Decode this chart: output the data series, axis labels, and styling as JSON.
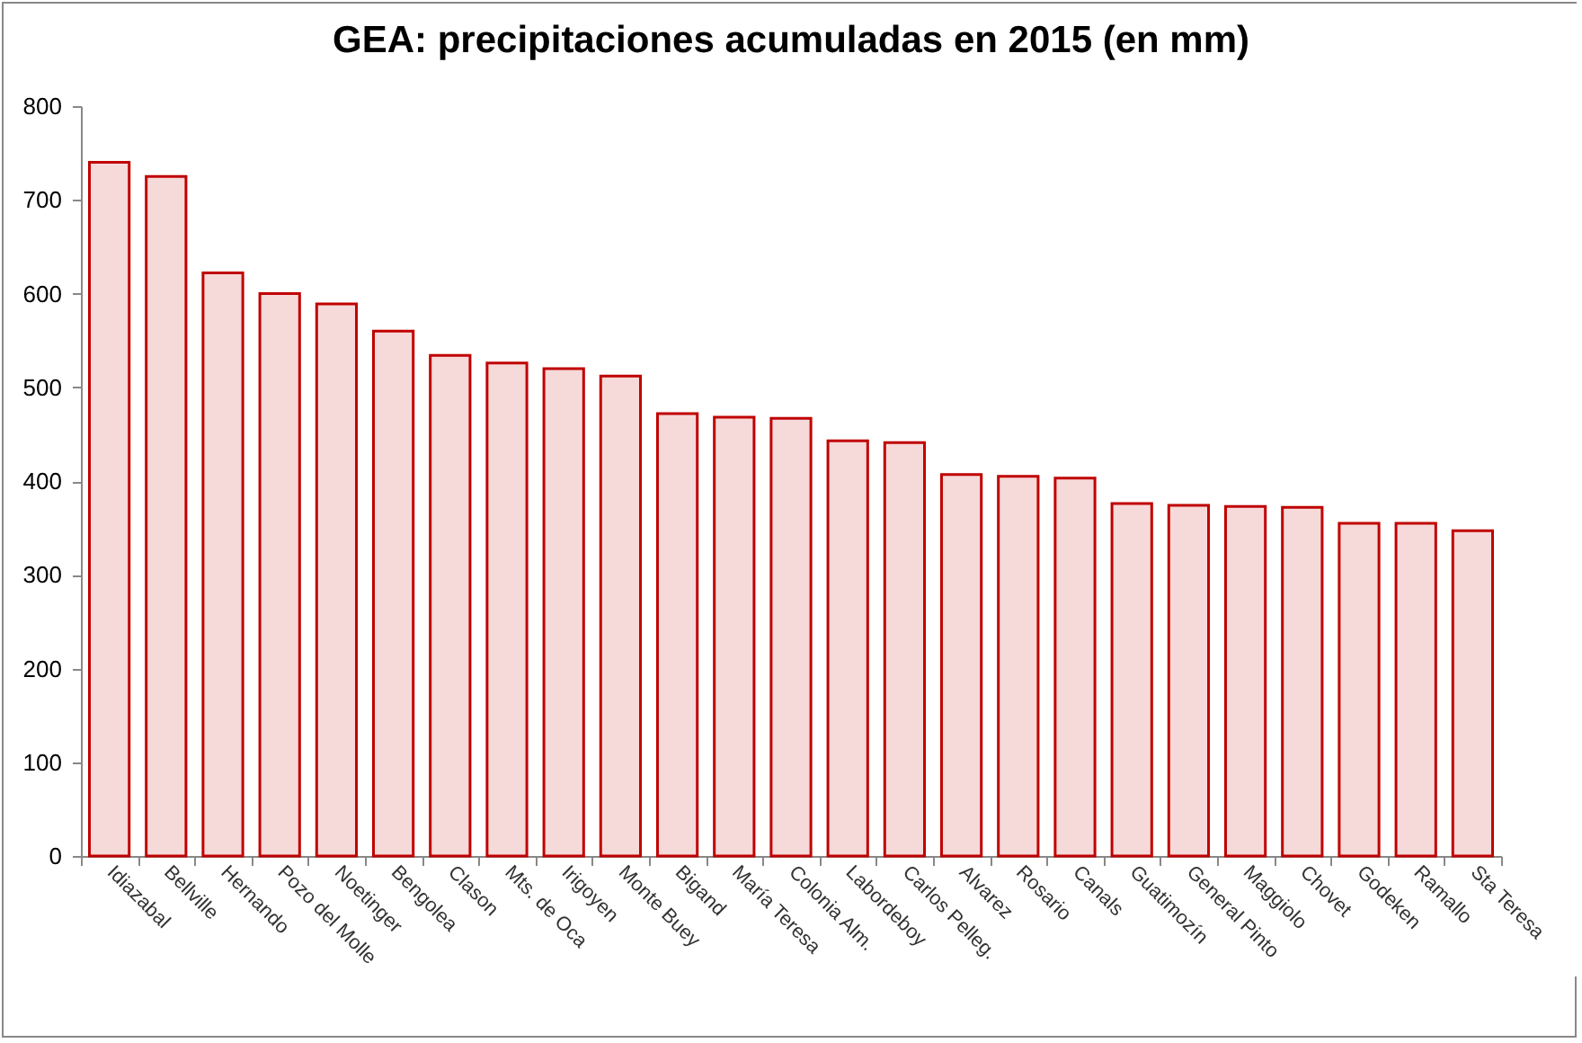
{
  "chart_data": {
    "type": "bar",
    "title": "GEA: precipitaciones acumuladas en 2015 (en mm)",
    "categories": [
      "Idiazabal",
      "Bellville",
      "Hernando",
      "Pozo del Molle",
      "Noetinger",
      "Bengolea",
      "Clason",
      "Mts. de Oca",
      "Irigoyen",
      "Monte Buey",
      "Bigand",
      "María Teresa",
      "Colonia Alm.",
      "Labordeboy",
      "Carlos Pelleg.",
      "Alvarez",
      "Rosario",
      "Canals",
      "Guatimozín",
      "General Pinto",
      "Maggiolo",
      "Chovet",
      "Godeken",
      "Ramallo",
      "Sta Teresa"
    ],
    "values": [
      740,
      725,
      622,
      600,
      589,
      560,
      534,
      526,
      520,
      512,
      472,
      468,
      467,
      443,
      441,
      407,
      405,
      403,
      376,
      374,
      373,
      372,
      355,
      355,
      347
    ],
    "color": "#c00000",
    "ylim": [
      0,
      800
    ],
    "yticks": [
      0,
      100,
      200,
      300,
      400,
      500,
      600,
      700,
      800
    ],
    "grid": false
  }
}
